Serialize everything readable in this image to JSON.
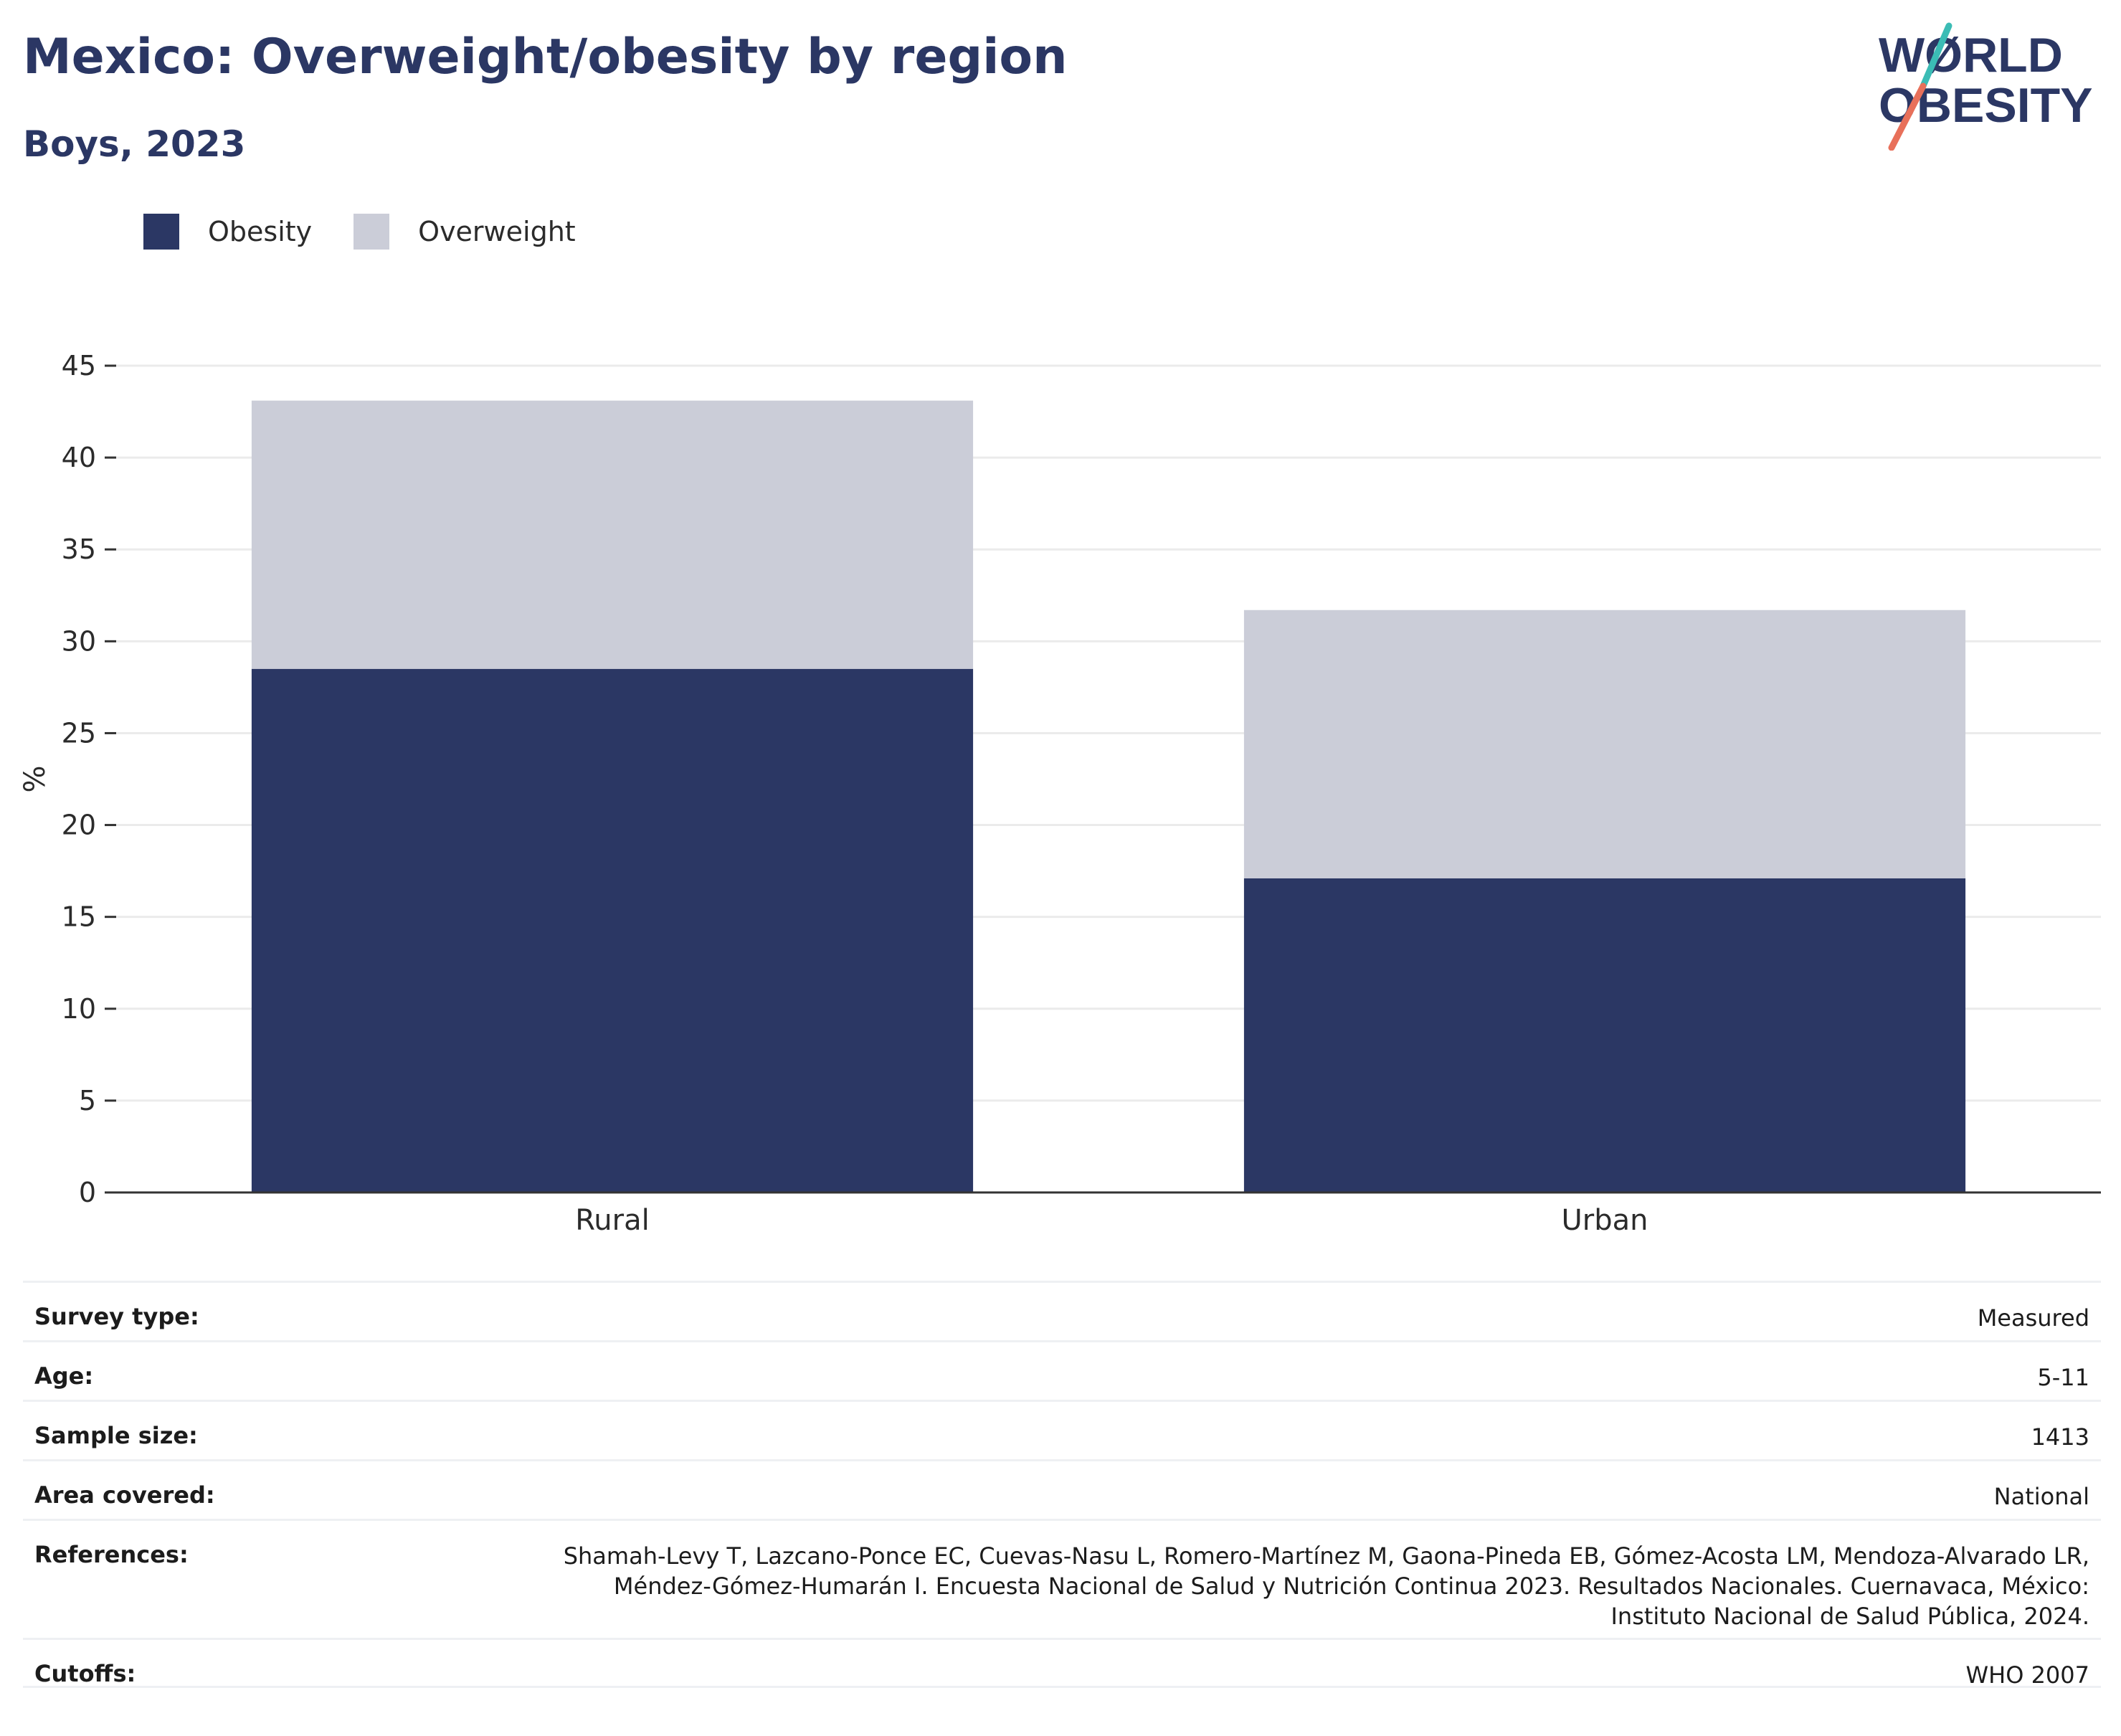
{
  "header": {
    "title": "Mexico: Overweight/obesity by region",
    "subtitle": "Boys, 2023"
  },
  "logo": {
    "line1": "WØRLD",
    "line2": "OBESITY",
    "colors": {
      "text": "#2b3764",
      "slash_top": "#3bbcb5",
      "slash_bottom": "#e8705a"
    }
  },
  "legend": [
    {
      "label": "Obesity",
      "color": "#2b3764"
    },
    {
      "label": "Overweight",
      "color": "#cbcdd8"
    }
  ],
  "chart_data": {
    "type": "bar",
    "stacked": true,
    "categories": [
      "Rural",
      "Urban"
    ],
    "series": [
      {
        "name": "Obesity",
        "values": [
          28.5,
          17.1
        ],
        "color": "#2b3764"
      },
      {
        "name": "Overweight",
        "values": [
          14.6,
          14.6
        ],
        "color": "#cbcdd8"
      }
    ],
    "title": "",
    "xlabel": "",
    "ylabel": "%",
    "ylim": [
      0,
      45
    ],
    "yticks": [
      0,
      5,
      10,
      15,
      20,
      25,
      30,
      35,
      40,
      45
    ],
    "grid": true,
    "legend_position": "top-left"
  },
  "meta": {
    "survey_type": {
      "label": "Survey type:",
      "value": "Measured"
    },
    "age": {
      "label": "Age:",
      "value": "5-11"
    },
    "sample_size": {
      "label": "Sample size:",
      "value": "1413"
    },
    "area_covered": {
      "label": "Area covered:",
      "value": "National"
    },
    "references": {
      "label": "References:",
      "lines": [
        "Shamah-Levy T, Lazcano-Ponce EC, Cuevas-Nasu L, Romero-Martínez M, Gaona-Pineda EB, Gómez-Acosta LM, Mendoza-Alvarado LR,",
        "Méndez-Gómez-Humarán I. Encuesta Nacional de Salud y Nutrición Continua 2023. Resultados Nacionales. Cuernavaca, México:",
        "Instituto Nacional de Salud Pública, 2024."
      ]
    },
    "cutoffs": {
      "label": "Cutoffs:",
      "value": "WHO 2007"
    }
  }
}
